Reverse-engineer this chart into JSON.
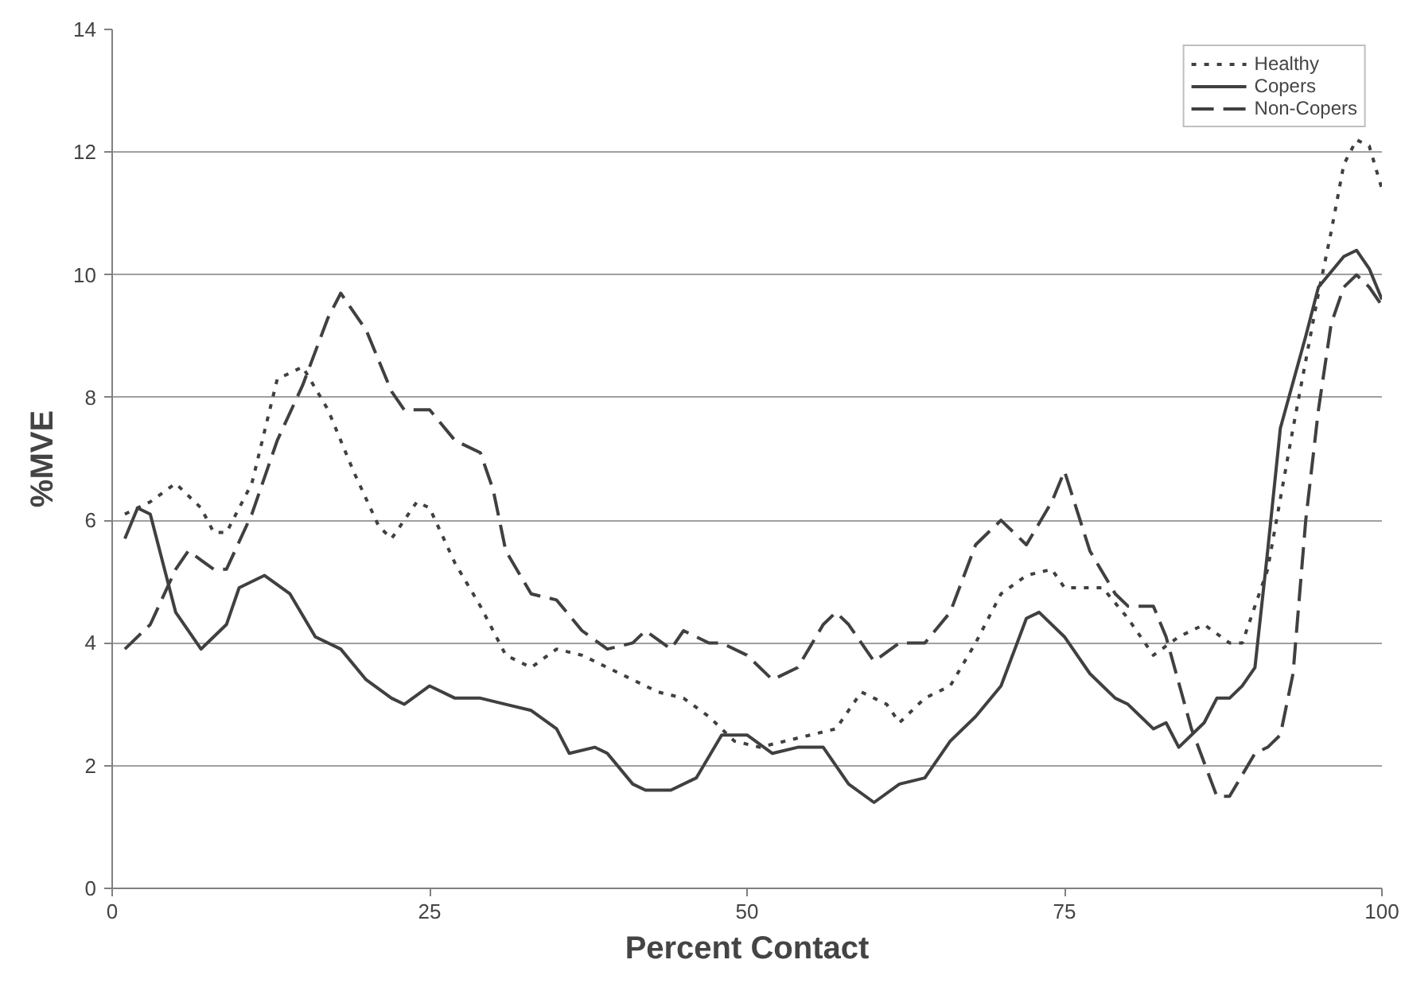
{
  "chart_data": {
    "type": "line",
    "xlabel": "Percent Contact",
    "ylabel": "%MVE",
    "xlim": [
      0,
      100
    ],
    "ylim": [
      0,
      14
    ],
    "xticks": [
      0,
      25,
      50,
      75,
      100
    ],
    "yticks": [
      0,
      2,
      4,
      6,
      8,
      10,
      12,
      14
    ],
    "grid": "y",
    "legend": "top right",
    "marker": "none",
    "series": [
      {
        "name": "Healthy",
        "color": "#404040",
        "line_style": "dotted",
        "x": [
          1,
          3,
          5,
          7,
          8,
          9,
          11,
          13,
          15,
          17,
          19,
          21,
          22,
          24,
          25,
          27,
          29,
          31,
          33,
          35,
          37,
          39,
          41,
          43,
          45,
          47,
          49,
          51,
          53,
          55,
          57,
          59,
          61,
          62,
          64,
          66,
          68,
          70,
          72,
          74,
          75,
          77,
          78,
          80,
          82,
          84,
          86,
          88,
          89,
          91,
          93,
          95,
          96,
          97,
          98,
          99,
          100
        ],
        "values": [
          6.1,
          6.3,
          6.6,
          6.2,
          5.8,
          5.8,
          6.6,
          8.3,
          8.5,
          7.8,
          6.8,
          5.9,
          5.7,
          6.3,
          6.2,
          5.3,
          4.6,
          3.8,
          3.6,
          3.9,
          3.8,
          3.6,
          3.4,
          3.2,
          3.1,
          2.8,
          2.4,
          2.3,
          2.4,
          2.5,
          2.6,
          3.2,
          3.0,
          2.7,
          3.1,
          3.3,
          4.0,
          4.8,
          5.1,
          5.2,
          4.9,
          4.9,
          4.9,
          4.4,
          3.8,
          4.1,
          4.3,
          4.0,
          4.0,
          5.2,
          7.5,
          9.7,
          10.7,
          11.8,
          12.2,
          12.1,
          11.4
        ]
      },
      {
        "name": "Copers",
        "color": "#404040",
        "line_style": "solid",
        "x": [
          1,
          2,
          3,
          5,
          7,
          9,
          10,
          12,
          14,
          16,
          18,
          20,
          22,
          23,
          25,
          27,
          29,
          31,
          33,
          35,
          36,
          38,
          39,
          41,
          42,
          44,
          46,
          48,
          50,
          52,
          54,
          56,
          58,
          60,
          62,
          64,
          66,
          68,
          70,
          72,
          73,
          75,
          77,
          79,
          80,
          81,
          82,
          83,
          84,
          86,
          87,
          88,
          89,
          90,
          91,
          92,
          94,
          95,
          97,
          98,
          99,
          100
        ],
        "values": [
          5.7,
          6.2,
          6.1,
          4.5,
          3.9,
          4.3,
          4.9,
          5.1,
          4.8,
          4.1,
          3.9,
          3.4,
          3.1,
          3.0,
          3.3,
          3.1,
          3.1,
          3.0,
          2.9,
          2.6,
          2.2,
          2.3,
          2.2,
          1.7,
          1.6,
          1.6,
          1.8,
          2.5,
          2.5,
          2.2,
          2.3,
          2.3,
          1.7,
          1.4,
          1.7,
          1.8,
          2.4,
          2.8,
          3.3,
          4.4,
          4.5,
          4.1,
          3.5,
          3.1,
          3.0,
          2.8,
          2.6,
          2.7,
          2.3,
          2.7,
          3.1,
          3.1,
          3.3,
          3.6,
          5.5,
          7.5,
          9.0,
          9.8,
          10.3,
          10.4,
          10.1,
          9.6
        ]
      },
      {
        "name": "Non-Copers",
        "color": "#404040",
        "line_style": "dashed",
        "x": [
          1,
          3,
          5,
          6,
          8,
          9,
          11,
          13,
          15,
          17,
          18,
          20,
          22,
          23,
          25,
          27,
          29,
          30,
          31,
          33,
          35,
          37,
          39,
          41,
          42,
          44,
          45,
          47,
          48,
          50,
          52,
          54,
          56,
          57,
          58,
          60,
          62,
          64,
          66,
          68,
          70,
          72,
          74,
          75,
          77,
          79,
          80,
          82,
          83,
          85,
          87,
          88,
          90,
          91,
          92,
          93,
          94,
          95,
          96,
          97,
          98,
          99,
          100
        ],
        "values": [
          3.9,
          4.3,
          5.2,
          5.5,
          5.2,
          5.2,
          6.1,
          7.3,
          8.2,
          9.3,
          9.7,
          9.1,
          8.1,
          7.8,
          7.8,
          7.3,
          7.1,
          6.5,
          5.5,
          4.8,
          4.7,
          4.2,
          3.9,
          4.0,
          4.2,
          3.9,
          4.2,
          4.0,
          4.0,
          3.8,
          3.4,
          3.6,
          4.3,
          4.5,
          4.3,
          3.7,
          4.0,
          4.0,
          4.5,
          5.6,
          6.0,
          5.6,
          6.3,
          6.8,
          5.5,
          4.8,
          4.6,
          4.6,
          4.1,
          2.6,
          1.5,
          1.5,
          2.2,
          2.3,
          2.5,
          3.5,
          6.0,
          7.8,
          9.2,
          9.8,
          10.0,
          9.8,
          9.5
        ]
      }
    ]
  }
}
